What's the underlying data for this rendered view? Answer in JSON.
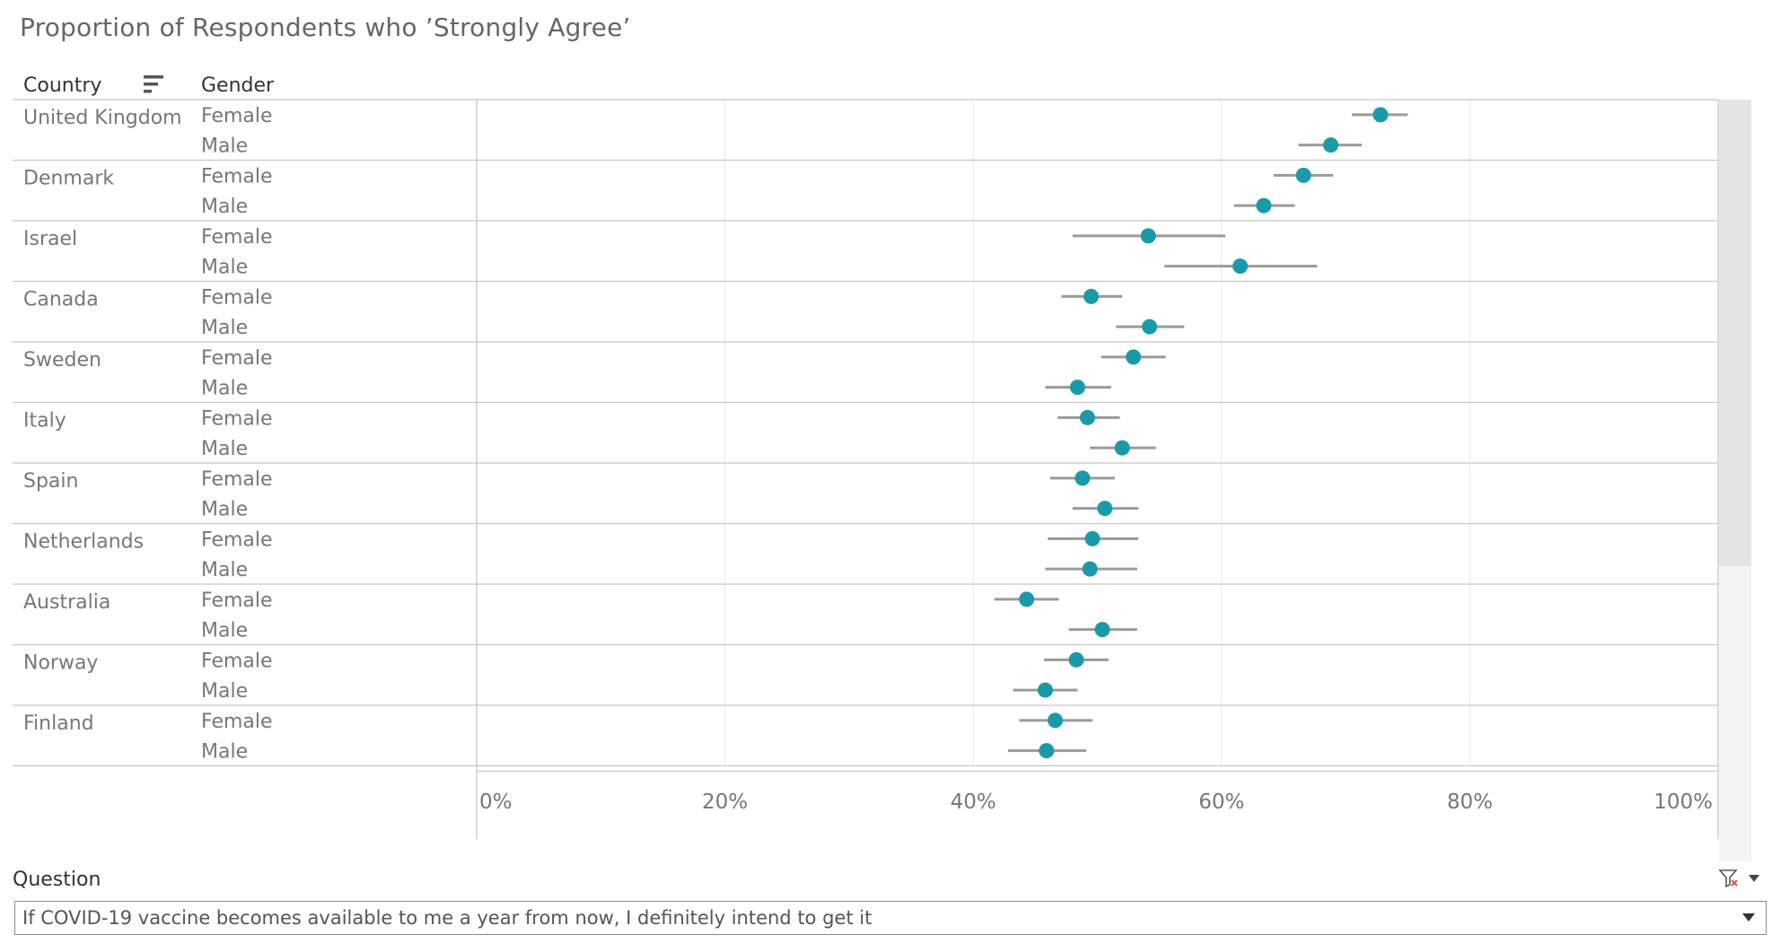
{
  "title": "Proportion of Respondents who ’Strongly Agree’",
  "headers": {
    "country": "Country",
    "gender": "Gender",
    "sort_icon": "sort-descending-icon"
  },
  "filter": {
    "label": "Question",
    "clear_icon": "clear-filter-icon",
    "menu_icon": "dropdown-menu-icon",
    "selected": "If COVID-19 vaccine becomes available to me a year from now, I definitely intend to get it"
  },
  "colors": {
    "dot": "#1a9aa8",
    "error_bar": "#9a9a9a",
    "grid": "#e8e8e8",
    "divider": "#c8c8c8",
    "scrollbar": "#e4e4e4"
  },
  "chart_data": {
    "type": "scatter",
    "x_axis": {
      "range": [
        0,
        100
      ],
      "ticks": [
        "0%",
        "20%",
        "40%",
        "60%",
        "80%",
        "100%"
      ],
      "tick_values": [
        0,
        20,
        40,
        60,
        80,
        100
      ]
    },
    "grid": true,
    "rows": [
      {
        "country": "United Kingdom",
        "entries": [
          {
            "gender": "Female",
            "value": 72.8,
            "low": 70.5,
            "high": 75.0
          },
          {
            "gender": "Male",
            "value": 68.8,
            "low": 66.2,
            "high": 71.3
          }
        ]
      },
      {
        "country": "Denmark",
        "entries": [
          {
            "gender": "Female",
            "value": 66.6,
            "low": 64.2,
            "high": 69.0
          },
          {
            "gender": "Male",
            "value": 63.4,
            "low": 61.0,
            "high": 65.9
          }
        ]
      },
      {
        "country": "Israel",
        "entries": [
          {
            "gender": "Female",
            "value": 54.1,
            "low": 48.0,
            "high": 60.3
          },
          {
            "gender": "Male",
            "value": 61.5,
            "low": 55.4,
            "high": 67.7
          }
        ]
      },
      {
        "country": "Canada",
        "entries": [
          {
            "gender": "Female",
            "value": 49.5,
            "low": 47.1,
            "high": 52.0
          },
          {
            "gender": "Male",
            "value": 54.2,
            "low": 51.5,
            "high": 57.0
          }
        ]
      },
      {
        "country": "Sweden",
        "entries": [
          {
            "gender": "Female",
            "value": 52.9,
            "low": 50.3,
            "high": 55.5
          },
          {
            "gender": "Male",
            "value": 48.4,
            "low": 45.8,
            "high": 51.1
          }
        ]
      },
      {
        "country": "Italy",
        "entries": [
          {
            "gender": "Female",
            "value": 49.2,
            "low": 46.8,
            "high": 51.8
          },
          {
            "gender": "Male",
            "value": 52.0,
            "low": 49.4,
            "high": 54.7
          }
        ]
      },
      {
        "country": "Spain",
        "entries": [
          {
            "gender": "Female",
            "value": 48.8,
            "low": 46.2,
            "high": 51.4
          },
          {
            "gender": "Male",
            "value": 50.6,
            "low": 48.0,
            "high": 53.3
          }
        ]
      },
      {
        "country": "Netherlands",
        "entries": [
          {
            "gender": "Female",
            "value": 49.6,
            "low": 46.0,
            "high": 53.3
          },
          {
            "gender": "Male",
            "value": 49.4,
            "low": 45.8,
            "high": 53.2
          }
        ]
      },
      {
        "country": "Australia",
        "entries": [
          {
            "gender": "Female",
            "value": 44.3,
            "low": 41.7,
            "high": 46.9
          },
          {
            "gender": "Male",
            "value": 50.4,
            "low": 47.7,
            "high": 53.2
          }
        ]
      },
      {
        "country": "Norway",
        "entries": [
          {
            "gender": "Female",
            "value": 48.3,
            "low": 45.7,
            "high": 50.9
          },
          {
            "gender": "Male",
            "value": 45.8,
            "low": 43.2,
            "high": 48.4
          }
        ]
      },
      {
        "country": "Finland",
        "entries": [
          {
            "gender": "Female",
            "value": 46.6,
            "low": 43.7,
            "high": 49.6
          },
          {
            "gender": "Male",
            "value": 45.9,
            "low": 42.8,
            "high": 49.1
          }
        ]
      }
    ]
  }
}
